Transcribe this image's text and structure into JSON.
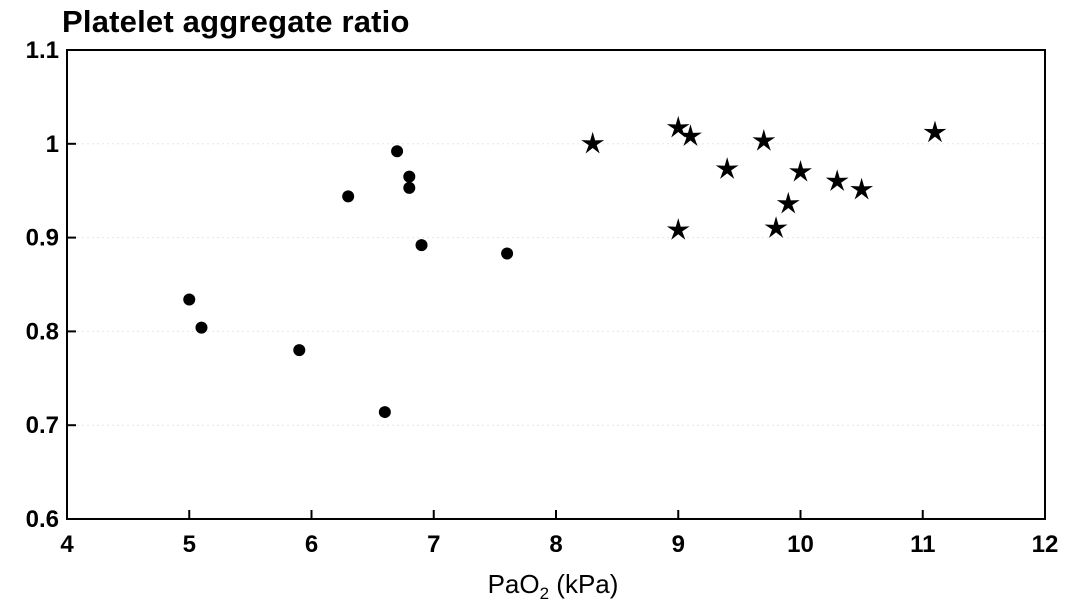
{
  "chart_data": {
    "type": "scatter",
    "title": "Platelet aggregate ratio",
    "xlabel": {
      "main": "PaO",
      "subscript": "2",
      "unit": " (kPa)"
    },
    "ylabel": "",
    "xlim": [
      4,
      12
    ],
    "ylim": [
      0.6,
      1.1
    ],
    "x_ticks": [
      4,
      5,
      6,
      7,
      8,
      9,
      10,
      11,
      12
    ],
    "x_tick_labels": [
      "4",
      "5",
      "6",
      "7",
      "8",
      "9",
      "10",
      "11",
      "12"
    ],
    "y_ticks": [
      0.6,
      0.7,
      0.8,
      0.9,
      1.0,
      1.1
    ],
    "y_tick_labels": [
      "0.6",
      "0.7",
      "0.8",
      "0.9",
      "1",
      "1.1"
    ],
    "grid": "horizontal-faint",
    "legend": "none",
    "series": [
      {
        "marker": "circle",
        "color": "#000000",
        "points": [
          {
            "x": 5.0,
            "y": 0.834
          },
          {
            "x": 5.1,
            "y": 0.804
          },
          {
            "x": 5.9,
            "y": 0.78
          },
          {
            "x": 6.3,
            "y": 0.944
          },
          {
            "x": 6.6,
            "y": 0.714
          },
          {
            "x": 6.7,
            "y": 0.992
          },
          {
            "x": 6.8,
            "y": 0.965
          },
          {
            "x": 6.8,
            "y": 0.953
          },
          {
            "x": 6.9,
            "y": 0.892
          },
          {
            "x": 7.6,
            "y": 0.883
          }
        ]
      },
      {
        "marker": "star",
        "color": "#000000",
        "points": [
          {
            "x": 8.3,
            "y": 1.0
          },
          {
            "x": 9.0,
            "y": 1.017
          },
          {
            "x": 9.1,
            "y": 1.008
          },
          {
            "x": 9.0,
            "y": 0.908
          },
          {
            "x": 9.4,
            "y": 0.973
          },
          {
            "x": 9.7,
            "y": 1.003
          },
          {
            "x": 9.8,
            "y": 0.91
          },
          {
            "x": 9.9,
            "y": 0.936
          },
          {
            "x": 10.0,
            "y": 0.97
          },
          {
            "x": 10.3,
            "y": 0.96
          },
          {
            "x": 10.5,
            "y": 0.951
          },
          {
            "x": 11.1,
            "y": 1.012
          }
        ]
      }
    ]
  }
}
